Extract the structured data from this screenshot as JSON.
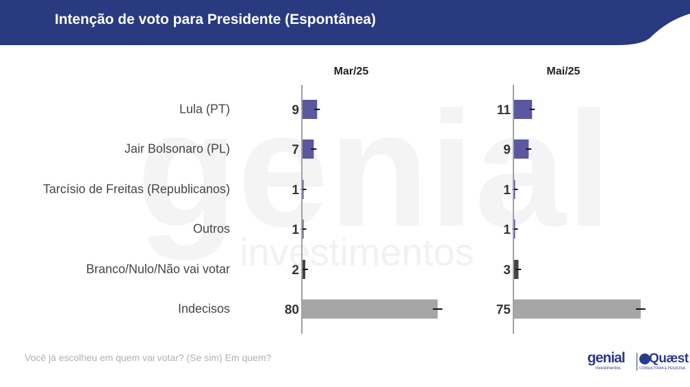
{
  "header": {
    "title": "Intenção de voto para Presidente (Espontânea)",
    "bg_color": "#2a3a80"
  },
  "chart_data": {
    "type": "bar",
    "orientation": "horizontal",
    "title": "Intenção de voto para Presidente (Espontânea)",
    "categories": [
      "Lula (PT)",
      "Jair Bolsonaro (PL)",
      "Tarcísio de Freitas (Republicanos)",
      "Outros",
      "Branco/Nulo/Não vai votar",
      "Indecisos"
    ],
    "series": [
      {
        "name": "Mar/25",
        "values": [
          9,
          7,
          1,
          1,
          2,
          80
        ]
      },
      {
        "name": "Mai/25",
        "values": [
          11,
          9,
          1,
          1,
          3,
          75
        ]
      }
    ],
    "colors": {
      "candidate": "#5b57a0",
      "blank": "#444444",
      "undecided": "#a6a6a6"
    },
    "error_bars": true,
    "xlim": [
      0,
      100
    ],
    "grid": false,
    "legend": "none"
  },
  "footnote": "Você já escolheu em quem vai votar? (Se sim) Em quem?",
  "logos": {
    "genial": "genial",
    "genial_sub": "investimentos",
    "quaest": "Quæst",
    "quaest_sub": "CONSULTORIA & PESQUISA"
  },
  "watermark": {
    "word": "genial",
    "sub": "investimentos"
  }
}
